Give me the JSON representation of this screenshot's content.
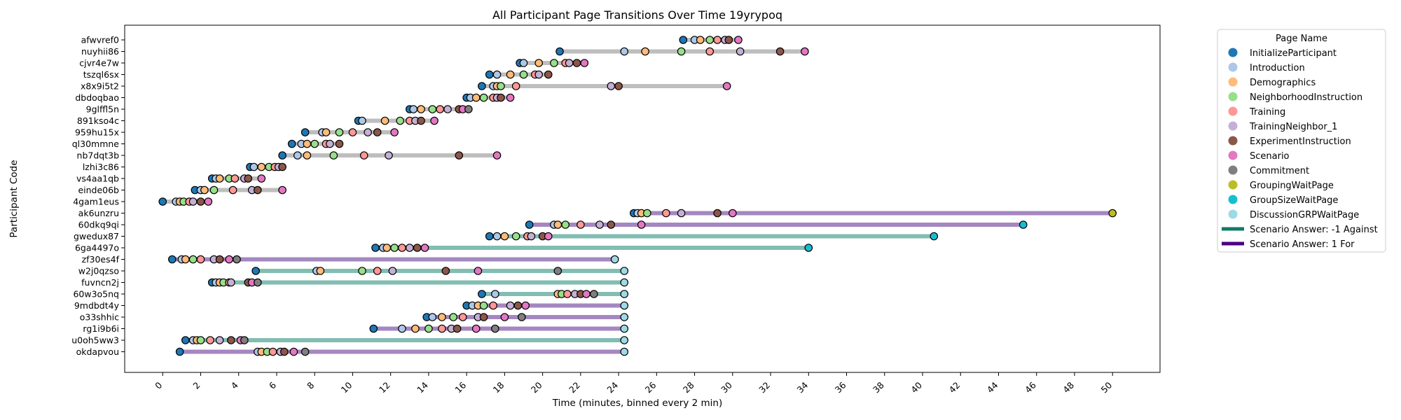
{
  "chart_data": {
    "type": "scatter",
    "title": "All Participant Page Transitions Over Time 19yrypoq",
    "xlabel": "Time (minutes, binned every 2 min)",
    "ylabel": "Participant Code",
    "xlim": [
      -2,
      52.5
    ],
    "xticks": [
      0,
      2,
      4,
      6,
      8,
      10,
      12,
      14,
      16,
      18,
      20,
      22,
      24,
      26,
      28,
      30,
      32,
      34,
      36,
      38,
      40,
      42,
      44,
      46,
      48,
      50
    ],
    "grid": false,
    "legend": {
      "title": "Page Name",
      "placement": "outside-right-top",
      "pages": [
        {
          "name": "InitializeParticipant",
          "color": "#1f77b4"
        },
        {
          "name": "Introduction",
          "color": "#aec7e8"
        },
        {
          "name": "Demographics",
          "color": "#ffbb78"
        },
        {
          "name": "NeighborhoodInstruction",
          "color": "#98df8a"
        },
        {
          "name": "Training",
          "color": "#ff9896"
        },
        {
          "name": "TrainingNeighbor_1",
          "color": "#c5b0d5"
        },
        {
          "name": "ExperimentInstruction",
          "color": "#8c564b"
        },
        {
          "name": "Scenario",
          "color": "#e377c2"
        },
        {
          "name": "Commitment",
          "color": "#7f7f7f"
        },
        {
          "name": "GroupingWaitPage",
          "color": "#bcbd22"
        },
        {
          "name": "GroupSizeWaitPage",
          "color": "#17becf"
        },
        {
          "name": "DiscussionGRPWaitPage",
          "color": "#9edae5"
        }
      ],
      "answers": [
        {
          "name": "Scenario Answer: -1 Against",
          "color": "#117a65",
          "line_color": "#82bdb2"
        },
        {
          "name": "Scenario Answer: 1 For",
          "color": "#4b0082",
          "line_color": "#a487c0"
        }
      ],
      "neutral_line_color": "#bebebe"
    },
    "page_order": [
      "InitializeParticipant",
      "Introduction",
      "Demographics",
      "NeighborhoodInstruction",
      "Training",
      "TrainingNeighbor_1",
      "ExperimentInstruction",
      "Scenario",
      "Commitment",
      "GroupingWaitPage",
      "GroupSizeWaitPage",
      "DiscussionGRPWaitPage"
    ],
    "participants": [
      {
        "code": "afwvref0",
        "answer": null,
        "times": [
          27.4,
          28.0,
          28.3,
          28.8,
          29.2,
          29.6,
          29.8,
          30.3
        ]
      },
      {
        "code": "nuyhii86",
        "answer": null,
        "times": [
          20.9,
          24.3,
          25.4,
          27.3,
          28.8,
          30.4,
          32.5,
          33.8
        ]
      },
      {
        "code": "cjvr4e7w",
        "answer": null,
        "times": [
          18.8,
          19.0,
          19.8,
          20.6,
          21.2,
          21.4,
          21.8,
          22.2
        ]
      },
      {
        "code": "tszql6sx",
        "answer": null,
        "times": [
          17.2,
          17.6,
          18.3,
          19.0,
          19.6,
          19.8,
          20.3
        ]
      },
      {
        "code": "x8x9i5t2",
        "answer": null,
        "times": [
          16.8,
          17.4,
          17.6,
          17.8,
          18.6,
          23.6,
          24.0,
          29.7
        ]
      },
      {
        "code": "dbdoqbao",
        "answer": null,
        "times": [
          16.0,
          16.2,
          16.5,
          16.9,
          17.4,
          17.6,
          17.8,
          18.3
        ]
      },
      {
        "code": "9glffl5n",
        "answer": null,
        "times": [
          13.0,
          13.2,
          13.6,
          14.2,
          14.6,
          15.0,
          15.6,
          15.8,
          16.1
        ]
      },
      {
        "code": "891kso4c",
        "answer": null,
        "times": [
          10.3,
          10.5,
          11.7,
          12.5,
          13.0,
          13.3,
          13.6,
          14.3
        ]
      },
      {
        "code": "959hu15x",
        "answer": null,
        "times": [
          7.5,
          8.4,
          8.6,
          9.3,
          10.0,
          10.8,
          11.3,
          12.2
        ]
      },
      {
        "code": "ql30mmne",
        "answer": null,
        "times": [
          6.8,
          7.3,
          7.6,
          8.0,
          8.6,
          8.8,
          9.3
        ]
      },
      {
        "code": "nb7dqt3b",
        "answer": null,
        "times": [
          6.3,
          7.1,
          7.6,
          9.0,
          10.6,
          11.9,
          15.6,
          17.6
        ]
      },
      {
        "code": "lzhi3c86",
        "answer": null,
        "times": [
          4.6,
          4.8,
          5.2,
          5.6,
          5.9,
          6.1,
          6.3
        ]
      },
      {
        "code": "vs4aa1qb",
        "answer": null,
        "times": [
          2.6,
          2.8,
          3.0,
          3.5,
          3.8,
          4.3,
          4.5,
          5.2
        ]
      },
      {
        "code": "einde06b",
        "answer": null,
        "times": [
          1.7,
          2.0,
          2.2,
          2.7,
          3.7,
          4.7,
          5.0,
          6.3
        ]
      },
      {
        "code": "4gam1eus",
        "answer": null,
        "times": [
          0.0,
          0.7,
          0.9,
          1.1,
          1.4,
          1.6,
          2.0,
          2.4
        ]
      },
      {
        "code": "ak6unzru",
        "answer": 1,
        "times": [
          24.8,
          25.0,
          25.2,
          25.5,
          26.5,
          27.3,
          29.2,
          30.0,
          50.0
        ]
      },
      {
        "code": "60dkq9qi",
        "answer": 1,
        "times": [
          19.3,
          20.6,
          20.8,
          21.2,
          22.0,
          23.0,
          23.6,
          25.2,
          45.3
        ]
      },
      {
        "code": "gwedux87",
        "answer": -1,
        "times": [
          17.2,
          17.6,
          18.0,
          18.6,
          19.2,
          19.4,
          20.0,
          20.3,
          40.6
        ]
      },
      {
        "code": "6ga4497o",
        "answer": -1,
        "times": [
          11.2,
          11.6,
          11.8,
          12.2,
          12.6,
          13.0,
          13.4,
          13.8,
          34.0
        ]
      },
      {
        "code": "zf30es4f",
        "answer": 1,
        "times": [
          0.5,
          1.0,
          1.2,
          1.6,
          2.0,
          2.7,
          3.0,
          3.5,
          3.9,
          23.8
        ]
      },
      {
        "code": "w2j0qzso",
        "answer": -1,
        "times": [
          4.9,
          8.1,
          8.3,
          10.5,
          11.3,
          12.1,
          14.9,
          16.6,
          20.8,
          24.3
        ]
      },
      {
        "code": "fuvncn2j",
        "answer": -1,
        "times": [
          2.6,
          2.8,
          3.0,
          3.2,
          3.5,
          3.6,
          4.5,
          4.7,
          5.0,
          24.3
        ]
      },
      {
        "code": "60w3o5nq",
        "answer": -1,
        "times": [
          16.8,
          17.5,
          20.8,
          21.0,
          21.3,
          21.7,
          22.0,
          22.3,
          22.7,
          24.3
        ]
      },
      {
        "code": "9mdbdt4y",
        "answer": 1,
        "times": [
          16.0,
          16.3,
          16.6,
          16.9,
          17.4,
          18.3,
          18.7,
          19.1,
          24.3
        ]
      },
      {
        "code": "o33shhic",
        "answer": 1,
        "times": [
          13.9,
          14.2,
          14.7,
          15.3,
          15.8,
          16.6,
          16.9,
          18.0,
          18.9,
          24.3
        ]
      },
      {
        "code": "rg1i9b6i",
        "answer": 1,
        "times": [
          11.1,
          12.6,
          13.3,
          14.0,
          14.7,
          15.2,
          15.5,
          16.5,
          17.5,
          24.3
        ]
      },
      {
        "code": "u0oh5ww3",
        "answer": -1,
        "times": [
          1.2,
          1.6,
          1.8,
          2.0,
          2.5,
          3.0,
          3.6,
          4.1,
          4.3,
          24.3
        ]
      },
      {
        "code": "okdapvou",
        "answer": 1,
        "times": [
          0.9,
          5.0,
          5.2,
          5.5,
          5.8,
          6.2,
          6.4,
          6.9,
          7.5,
          24.3
        ]
      }
    ]
  }
}
